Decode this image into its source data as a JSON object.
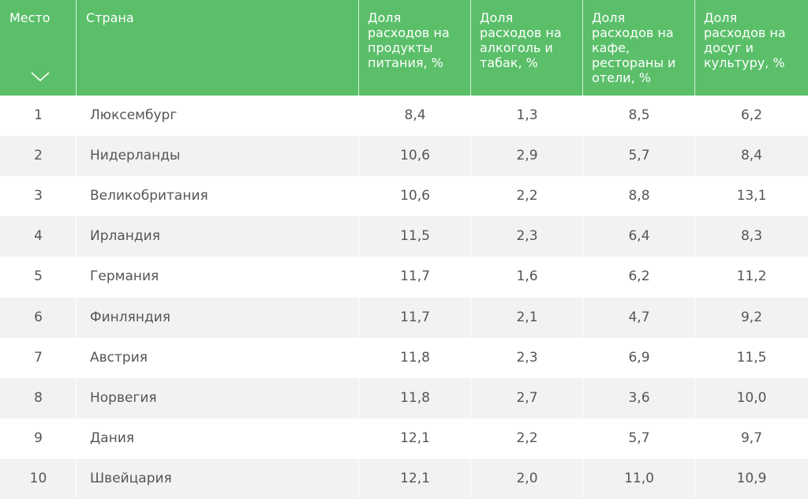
{
  "table": {
    "headers": {
      "rank": "Место",
      "country": "Страна",
      "food": "Доля\nрасходов на\nпродукты\nпитания, %",
      "alcohol": "Доля\nрасходов на\nалкоголь и\nтабак, %",
      "cafe": "Доля\nрасходов на\nкафе,\nрестораны и\nотели, %",
      "leisure": "Доля\nрасходов на\nдосуг и\nкультуру, %"
    },
    "sort_icon": "chevron-down-icon",
    "header_color": "#5bbf6a",
    "rows": [
      {
        "rank": "1",
        "country": "Люксембург",
        "food": "8,4",
        "alcohol": "1,3",
        "cafe": "8,5",
        "leisure": "6,2"
      },
      {
        "rank": "2",
        "country": "Нидерланды",
        "food": "10,6",
        "alcohol": "2,9",
        "cafe": "5,7",
        "leisure": "8,4"
      },
      {
        "rank": "3",
        "country": "Великобритания",
        "food": "10,6",
        "alcohol": "2,2",
        "cafe": "8,8",
        "leisure": "13,1"
      },
      {
        "rank": "4",
        "country": "Ирландия",
        "food": "11,5",
        "alcohol": "2,3",
        "cafe": "6,4",
        "leisure": "8,3"
      },
      {
        "rank": "5",
        "country": "Германия",
        "food": "11,7",
        "alcohol": "1,6",
        "cafe": "6,2",
        "leisure": "11,2"
      },
      {
        "rank": "6",
        "country": "Финляндия",
        "food": "11,7",
        "alcohol": "2,1",
        "cafe": "4,7",
        "leisure": "9,2"
      },
      {
        "rank": "7",
        "country": "Австрия",
        "food": "11,8",
        "alcohol": "2,3",
        "cafe": "6,9",
        "leisure": "11,5"
      },
      {
        "rank": "8",
        "country": "Норвегия",
        "food": "11,8",
        "alcohol": "2,7",
        "cafe": "3,6",
        "leisure": "10,0"
      },
      {
        "rank": "9",
        "country": "Дания",
        "food": "12,1",
        "alcohol": "2,2",
        "cafe": "5,7",
        "leisure": "9,7"
      },
      {
        "rank": "10",
        "country": "Швейцария",
        "food": "12,1",
        "alcohol": "2,0",
        "cafe": "11,0",
        "leisure": "10,9"
      }
    ]
  }
}
